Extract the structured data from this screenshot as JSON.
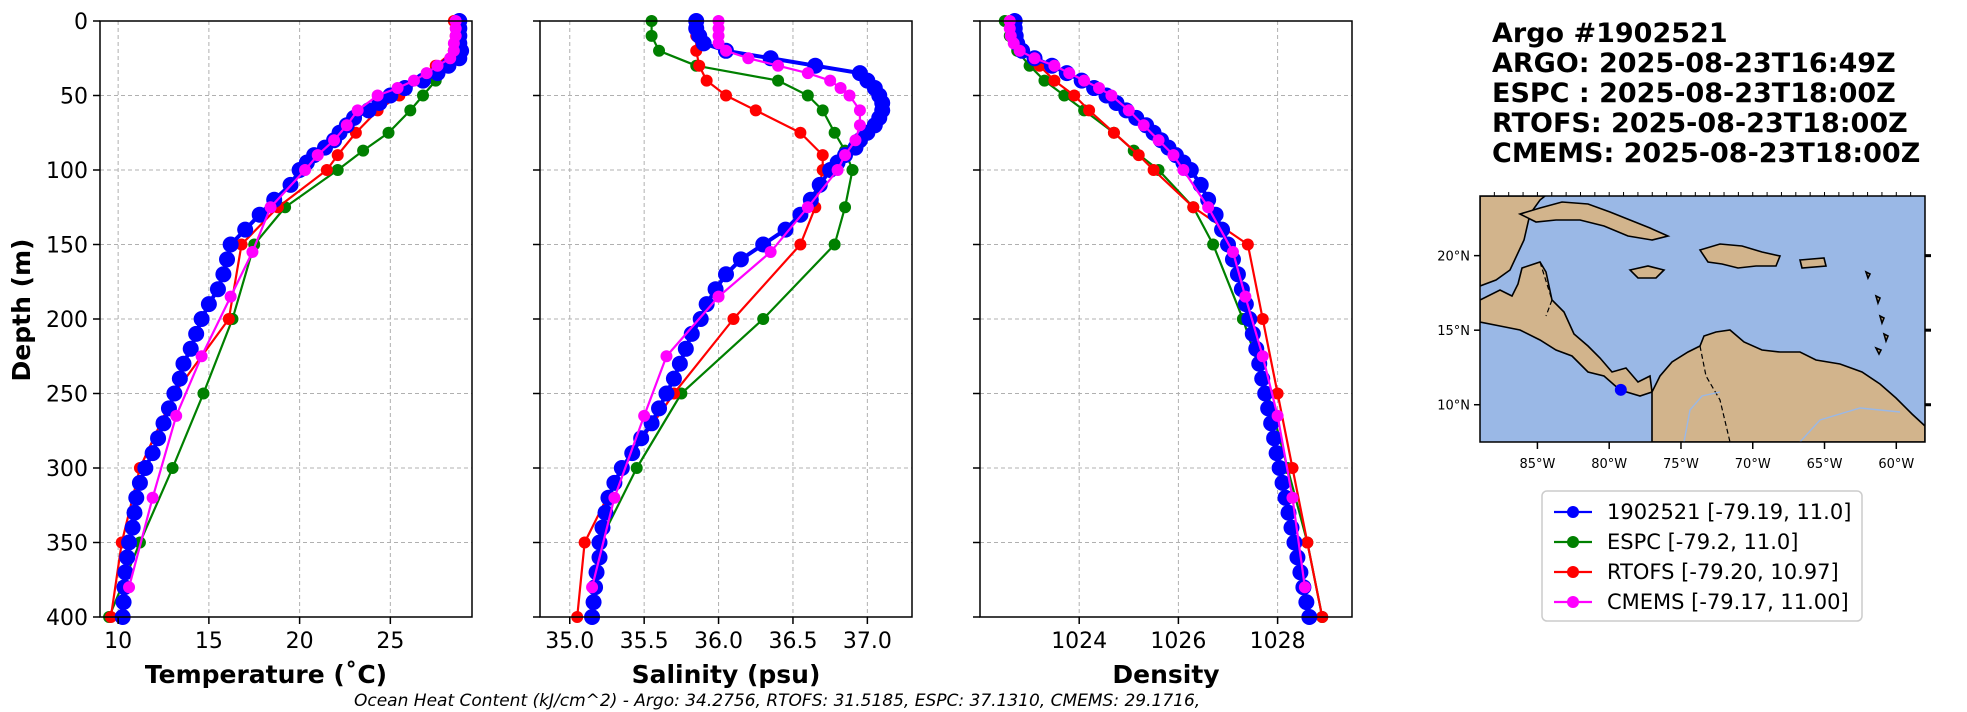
{
  "header": {
    "lines": [
      "Argo #1902521",
      "ARGO: 2025-08-23T16:49Z",
      "ESPC : 2025-08-23T18:00Z",
      "RTOFS: 2025-08-23T18:00Z",
      "CMEMS: 2025-08-23T18:00Z"
    ]
  },
  "caption": "Ocean Heat Content (kJ/cm^2) - Argo: 34.2756,  RTOFS: 31.5185,  ESPC: 37.1310,  CMEMS: 29.1716,",
  "colors": {
    "argo": "#0000ff",
    "espc": "#008000",
    "rtofs": "#ff0000",
    "cmems": "#ff00ff",
    "ocean": "#9ab8e6",
    "land": "#d2b48c"
  },
  "map": {
    "xticks": [
      "85°W",
      "80°W",
      "75°W",
      "70°W",
      "65°W",
      "60°W"
    ],
    "yticks": [
      "20°N",
      "15°N",
      "10°N"
    ],
    "lon_range": [
      -89,
      -58
    ],
    "lat_range": [
      7.5,
      24
    ],
    "lon_ticks": [
      -85,
      -80,
      -75,
      -70,
      -65,
      -60
    ],
    "lat_ticks": [
      20,
      15,
      10
    ],
    "float_position": [
      -79.19,
      11.0
    ]
  },
  "legend": [
    {
      "key": "argo",
      "label": "1902521 [-79.19, 11.0]"
    },
    {
      "key": "espc",
      "label": "ESPC [-79.2, 11.0]"
    },
    {
      "key": "rtofs",
      "label": "RTOFS [-79.20, 10.97]"
    },
    {
      "key": "cmems",
      "label": "CMEMS [-79.17, 11.00]"
    }
  ],
  "chart_data": [
    {
      "type": "line",
      "xlabel": "Temperature (˚C)",
      "ylabel": "Depth (m)",
      "xlim": [
        9,
        29.5
      ],
      "ylim": [
        400,
        0
      ],
      "xticks": [
        10,
        15,
        20,
        25
      ],
      "yticks": [
        0,
        50,
        100,
        150,
        200,
        250,
        300,
        350,
        400
      ],
      "series": [
        {
          "name": "argo",
          "y": [
            0,
            5,
            10,
            15,
            20,
            25,
            30,
            35,
            40,
            45,
            50,
            55,
            60,
            65,
            70,
            75,
            80,
            85,
            90,
            95,
            100,
            110,
            120,
            130,
            140,
            150,
            160,
            170,
            180,
            190,
            200,
            210,
            220,
            230,
            240,
            250,
            260,
            270,
            280,
            290,
            300,
            310,
            320,
            330,
            340,
            350,
            360,
            370,
            380,
            390,
            400
          ],
          "values": [
            28.8,
            28.8,
            28.8,
            28.8,
            28.9,
            28.8,
            28.2,
            27.6,
            26.8,
            25.8,
            25.0,
            24.4,
            23.8,
            23.0,
            22.6,
            22.2,
            21.9,
            21.4,
            20.8,
            20.4,
            20.0,
            19.5,
            18.6,
            17.8,
            17.0,
            16.2,
            16.0,
            15.8,
            15.5,
            15.0,
            14.6,
            14.3,
            14.0,
            13.6,
            13.4,
            13.1,
            12.8,
            12.5,
            12.2,
            11.9,
            11.5,
            11.2,
            11.0,
            10.9,
            10.8,
            10.6,
            10.5,
            10.4,
            10.35,
            10.3,
            10.25
          ]
        },
        {
          "name": "espc",
          "y": [
            0,
            10,
            20,
            30,
            40,
            50,
            60,
            75,
            87,
            100,
            125,
            150,
            200,
            250,
            300,
            350,
            400
          ],
          "values": [
            28.7,
            28.7,
            28.5,
            28.0,
            27.5,
            26.8,
            26.1,
            24.9,
            23.5,
            22.1,
            19.2,
            17.5,
            16.3,
            14.7,
            13.0,
            11.2,
            9.5
          ]
        },
        {
          "name": "rtofs",
          "y": [
            0,
            10,
            20,
            30,
            40,
            50,
            60,
            75,
            90,
            100,
            125,
            150,
            200,
            250,
            300,
            350,
            400
          ],
          "values": [
            28.5,
            28.6,
            28.5,
            27.5,
            26.6,
            25.5,
            24.3,
            23.1,
            22.1,
            21.5,
            18.8,
            16.8,
            16.1,
            13.1,
            11.2,
            10.2,
            9.6
          ]
        },
        {
          "name": "cmems",
          "y": [
            0,
            5,
            10,
            15,
            20,
            25,
            30,
            35,
            40,
            45,
            50,
            60,
            70,
            80,
            90,
            100,
            125,
            155,
            185,
            225,
            265,
            320,
            380
          ],
          "values": [
            28.6,
            28.6,
            28.6,
            28.5,
            28.5,
            28.3,
            27.6,
            27.0,
            26.3,
            25.4,
            24.3,
            23.2,
            22.6,
            21.9,
            21.0,
            20.3,
            18.4,
            17.4,
            16.2,
            14.6,
            13.2,
            11.9,
            10.6
          ]
        }
      ]
    },
    {
      "type": "line",
      "xlabel": "Salinity (psu)",
      "ylabel": "",
      "xlim": [
        34.8,
        37.3
      ],
      "ylim": [
        400,
        0
      ],
      "xticks": [
        35.0,
        35.5,
        36.0,
        36.5,
        37.0
      ],
      "yticks": [
        0,
        50,
        100,
        150,
        200,
        250,
        300,
        350,
        400
      ],
      "series": [
        {
          "name": "argo",
          "y": [
            0,
            5,
            10,
            15,
            20,
            25,
            30,
            35,
            40,
            45,
            50,
            55,
            60,
            65,
            70,
            75,
            80,
            85,
            90,
            95,
            100,
            110,
            120,
            130,
            140,
            150,
            160,
            170,
            180,
            190,
            200,
            210,
            220,
            230,
            240,
            250,
            260,
            270,
            280,
            290,
            300,
            310,
            320,
            330,
            340,
            350,
            360,
            370,
            380,
            390,
            400
          ],
          "values": [
            35.85,
            35.85,
            35.87,
            35.9,
            36.05,
            36.35,
            36.65,
            36.95,
            37.0,
            37.05,
            37.08,
            37.1,
            37.1,
            37.08,
            37.05,
            37.0,
            36.95,
            36.92,
            36.85,
            36.8,
            36.75,
            36.68,
            36.62,
            36.55,
            36.45,
            36.3,
            36.15,
            36.05,
            35.98,
            35.92,
            35.88,
            35.82,
            35.78,
            35.74,
            35.7,
            35.65,
            35.6,
            35.55,
            35.48,
            35.42,
            35.35,
            35.3,
            35.26,
            35.24,
            35.22,
            35.2,
            35.2,
            35.18,
            35.17,
            35.16,
            35.15
          ]
        },
        {
          "name": "espc",
          "y": [
            0,
            10,
            20,
            30,
            40,
            50,
            60,
            75,
            87,
            100,
            125,
            150,
            200,
            250,
            300,
            350,
            400
          ],
          "values": [
            35.55,
            35.55,
            35.6,
            35.85,
            36.4,
            36.6,
            36.7,
            36.78,
            36.85,
            36.9,
            36.85,
            36.78,
            36.3,
            35.75,
            35.45,
            35.2,
            35.15
          ]
        },
        {
          "name": "rtofs",
          "y": [
            0,
            10,
            20,
            30,
            40,
            50,
            60,
            75,
            90,
            100,
            125,
            150,
            200,
            250,
            300,
            350,
            400
          ],
          "values": [
            35.85,
            35.85,
            35.85,
            35.87,
            35.92,
            36.05,
            36.25,
            36.55,
            36.7,
            36.7,
            36.65,
            36.55,
            36.1,
            35.7,
            35.35,
            35.1,
            35.05
          ]
        },
        {
          "name": "cmems",
          "y": [
            0,
            5,
            10,
            15,
            20,
            25,
            30,
            35,
            40,
            45,
            50,
            60,
            70,
            80,
            90,
            100,
            125,
            155,
            185,
            225,
            265,
            320,
            380
          ],
          "values": [
            36.0,
            36.0,
            36.0,
            36.0,
            36.05,
            36.2,
            36.4,
            36.6,
            36.75,
            36.82,
            36.88,
            36.95,
            36.95,
            36.92,
            36.85,
            36.8,
            36.6,
            36.35,
            36.0,
            35.65,
            35.5,
            35.3,
            35.15
          ]
        }
      ]
    },
    {
      "type": "line",
      "xlabel": "Density",
      "ylabel": "",
      "xlim": [
        1022.0,
        1029.5
      ],
      "ylim": [
        400,
        0
      ],
      "xticks": [
        1024,
        1026,
        1028
      ],
      "yticks": [
        0,
        50,
        100,
        150,
        200,
        250,
        300,
        350,
        400
      ],
      "series": [
        {
          "name": "argo",
          "y": [
            0,
            5,
            10,
            15,
            20,
            25,
            30,
            35,
            40,
            45,
            50,
            55,
            60,
            65,
            70,
            75,
            80,
            85,
            90,
            95,
            100,
            110,
            120,
            130,
            140,
            150,
            160,
            170,
            180,
            190,
            200,
            210,
            220,
            230,
            240,
            250,
            260,
            270,
            280,
            290,
            300,
            310,
            320,
            330,
            340,
            350,
            360,
            370,
            380,
            390,
            400
          ],
          "values": [
            1022.7,
            1022.7,
            1022.72,
            1022.75,
            1022.85,
            1023.1,
            1023.45,
            1023.75,
            1024.05,
            1024.3,
            1024.55,
            1024.75,
            1024.95,
            1025.15,
            1025.35,
            1025.5,
            1025.65,
            1025.8,
            1025.95,
            1026.1,
            1026.25,
            1026.45,
            1026.6,
            1026.75,
            1026.88,
            1027.0,
            1027.1,
            1027.2,
            1027.28,
            1027.36,
            1027.43,
            1027.5,
            1027.57,
            1027.63,
            1027.69,
            1027.75,
            1027.81,
            1027.87,
            1027.93,
            1027.98,
            1028.04,
            1028.1,
            1028.16,
            1028.22,
            1028.28,
            1028.34,
            1028.4,
            1028.46,
            1028.52,
            1028.58,
            1028.64
          ]
        },
        {
          "name": "espc",
          "y": [
            0,
            10,
            20,
            30,
            40,
            50,
            60,
            75,
            87,
            100,
            125,
            150,
            200,
            250,
            300,
            350,
            400
          ],
          "values": [
            1022.5,
            1022.6,
            1022.75,
            1023.0,
            1023.3,
            1023.7,
            1024.1,
            1024.7,
            1025.1,
            1025.6,
            1026.3,
            1026.7,
            1027.3,
            1027.8,
            1028.2,
            1028.6,
            1028.9
          ]
        },
        {
          "name": "rtofs",
          "y": [
            0,
            10,
            20,
            30,
            40,
            50,
            60,
            75,
            90,
            100,
            125,
            150,
            200,
            250,
            300,
            350,
            400
          ],
          "values": [
            1022.6,
            1022.65,
            1022.8,
            1023.2,
            1023.5,
            1023.9,
            1024.2,
            1024.7,
            1025.2,
            1025.5,
            1026.3,
            1027.4,
            1027.7,
            1028.0,
            1028.3,
            1028.6,
            1028.9
          ]
        },
        {
          "name": "cmems",
          "y": [
            0,
            5,
            10,
            15,
            20,
            25,
            30,
            35,
            40,
            45,
            50,
            60,
            70,
            80,
            90,
            100,
            125,
            155,
            185,
            225,
            265,
            320,
            380
          ],
          "values": [
            1022.6,
            1022.6,
            1022.62,
            1022.68,
            1022.8,
            1023.1,
            1023.5,
            1023.8,
            1024.1,
            1024.4,
            1024.65,
            1025.0,
            1025.3,
            1025.6,
            1025.9,
            1026.1,
            1026.6,
            1027.1,
            1027.35,
            1027.7,
            1028.0,
            1028.3,
            1028.55
          ]
        }
      ]
    }
  ]
}
